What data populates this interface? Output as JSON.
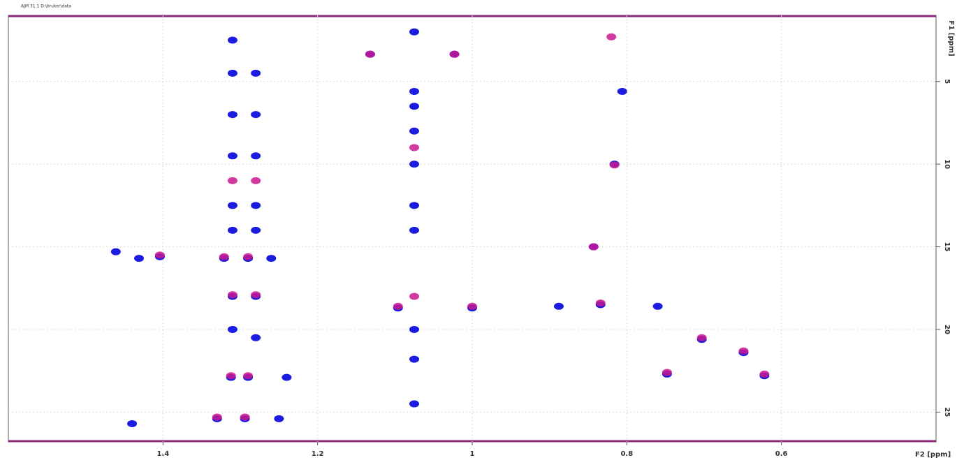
{
  "chart_data": {
    "type": "scatter",
    "header": "AJM 31 1 D:\\bruker\\data",
    "x_label": "F2 [ppm]",
    "y_label": "F1 [ppm]",
    "xlim": [
      1.6,
      0.4
    ],
    "ylim": [
      1.0,
      26.8
    ],
    "xticks": [
      1.4,
      1.2,
      1.0,
      0.8,
      0.6
    ],
    "yticks": [
      5,
      10,
      15,
      20,
      25
    ],
    "grid": true,
    "series": [
      {
        "color": "#1c1ce0",
        "x": [
          1.132,
          1.023,
          1.075,
          1.075,
          1.075,
          0.806,
          0.816,
          0.843,
          1.461,
          1.404,
          1.431,
          1.321,
          1.29,
          1.26,
          1.096,
          1.0,
          0.888,
          0.834,
          0.76,
          0.703,
          0.649,
          0.748,
          0.622,
          1.312,
          1.29,
          1.24,
          1.33,
          1.294,
          1.25,
          1.44,
          1.31,
          1.31,
          1.31,
          1.31,
          1.31,
          1.31,
          1.31,
          1.31,
          1.28,
          1.28,
          1.28,
          1.28,
          1.28,
          1.28,
          1.28,
          1.075,
          1.075,
          1.075,
          1.075,
          1.075,
          1.075,
          1.075
        ],
        "y": [
          3.35,
          3.35,
          2.0,
          5.6,
          6.5,
          5.6,
          10.0,
          15.0,
          15.3,
          15.6,
          15.7,
          15.7,
          15.7,
          15.7,
          18.7,
          18.7,
          18.6,
          18.5,
          18.6,
          20.6,
          21.4,
          22.7,
          22.8,
          22.9,
          22.9,
          22.9,
          25.4,
          25.4,
          25.4,
          25.7,
          2.5,
          4.5,
          7.0,
          9.5,
          12.5,
          14.0,
          18.0,
          20.0,
          4.5,
          7.0,
          9.5,
          12.5,
          14.0,
          18.0,
          20.5,
          8.0,
          10.0,
          12.5,
          14.0,
          20.0,
          21.8,
          24.5
        ]
      },
      {
        "color": "#c81890",
        "x": [
          1.132,
          1.023,
          0.816,
          0.843,
          1.404,
          1.321,
          1.29,
          1.096,
          1.0,
          0.834,
          0.703,
          0.649,
          0.748,
          0.622,
          1.312,
          1.29,
          1.33,
          1.294,
          1.31,
          1.28,
          1.31,
          1.28,
          1.075,
          1.075,
          0.82
        ],
        "y": [
          3.35,
          3.35,
          10.05,
          15.0,
          15.5,
          15.6,
          15.6,
          18.6,
          18.6,
          18.4,
          20.5,
          21.3,
          22.6,
          22.7,
          22.8,
          22.8,
          25.3,
          25.3,
          17.9,
          17.9,
          11.0,
          11.0,
          9.0,
          18.0,
          2.3
        ]
      }
    ]
  }
}
